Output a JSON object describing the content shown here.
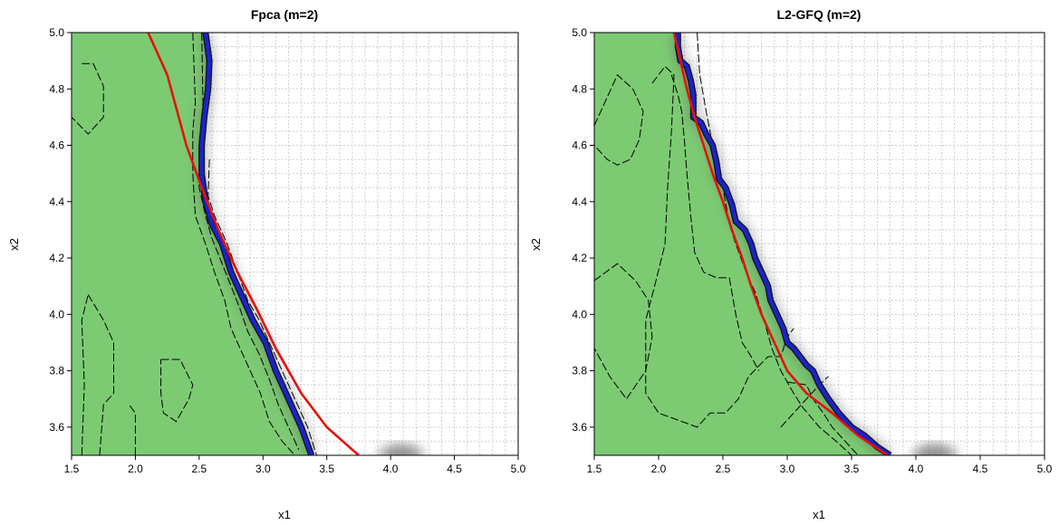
{
  "chart_data": [
    {
      "type": "area",
      "title": "Fpca (m=2)",
      "xlabel": "x1",
      "ylabel": "x2",
      "xlim": [
        1.5,
        5.0
      ],
      "ylim": [
        3.5,
        5.0
      ],
      "xticks": [
        "1.5",
        "2.0",
        "2.5",
        "3.0",
        "3.5",
        "4.0",
        "4.5",
        "5.0"
      ],
      "yticks": [
        "3.6",
        "3.8",
        "4.0",
        "4.2",
        "4.4",
        "4.6",
        "4.8",
        "5.0"
      ],
      "grid": true,
      "colors": {
        "region": "#7ccb73",
        "estimated_boundary": "#1a24c8",
        "true_boundary": "#e8100c",
        "contours": "#000000",
        "shading": "#707070"
      },
      "region_boundary": [
        [
          2.55,
          5.0
        ],
        [
          2.58,
          4.9
        ],
        [
          2.57,
          4.8
        ],
        [
          2.54,
          4.7
        ],
        [
          2.52,
          4.6
        ],
        [
          2.52,
          4.5
        ],
        [
          2.55,
          4.4
        ],
        [
          2.6,
          4.32
        ],
        [
          2.68,
          4.25
        ],
        [
          2.75,
          4.15
        ],
        [
          2.85,
          4.05
        ],
        [
          2.92,
          3.98
        ],
        [
          3.02,
          3.9
        ],
        [
          3.1,
          3.8
        ],
        [
          3.2,
          3.7
        ],
        [
          3.3,
          3.6
        ],
        [
          3.38,
          3.5
        ]
      ],
      "true_boundary": [
        [
          2.1,
          5.0
        ],
        [
          2.25,
          4.85
        ],
        [
          2.4,
          4.6
        ],
        [
          2.52,
          4.45
        ],
        [
          2.65,
          4.3
        ],
        [
          2.8,
          4.15
        ],
        [
          2.95,
          4.02
        ],
        [
          3.1,
          3.88
        ],
        [
          3.3,
          3.72
        ],
        [
          3.5,
          3.6
        ],
        [
          3.75,
          3.5
        ]
      ],
      "contours": [
        [
          [
            1.58,
            4.89
          ],
          [
            1.67,
            4.89
          ],
          [
            1.75,
            4.81
          ],
          [
            1.75,
            4.7
          ],
          [
            1.63,
            4.64
          ],
          [
            1.5,
            4.7
          ]
        ],
        [
          [
            1.63,
            4.07
          ],
          [
            1.75,
            3.98
          ],
          [
            1.83,
            3.9
          ],
          [
            1.83,
            3.72
          ],
          [
            1.75,
            3.68
          ],
          [
            1.72,
            3.5
          ]
        ],
        [
          [
            1.58,
            3.5
          ],
          [
            1.6,
            3.75
          ],
          [
            1.58,
            3.98
          ],
          [
            1.63,
            4.07
          ]
        ],
        [
          [
            2.2,
            3.84
          ],
          [
            2.35,
            3.84
          ],
          [
            2.45,
            3.75
          ],
          [
            2.42,
            3.7
          ],
          [
            2.32,
            3.62
          ],
          [
            2.22,
            3.65
          ],
          [
            2.2,
            3.72
          ],
          [
            2.2,
            3.84
          ]
        ],
        [
          [
            2.0,
            3.5
          ],
          [
            2.0,
            3.65
          ],
          [
            1.95,
            3.68
          ]
        ],
        [
          [
            2.45,
            5.0
          ],
          [
            2.47,
            4.75
          ],
          [
            2.45,
            4.65
          ],
          [
            2.45,
            4.5
          ],
          [
            2.47,
            4.35
          ],
          [
            2.55,
            4.25
          ],
          [
            2.62,
            4.15
          ],
          [
            2.7,
            4.05
          ],
          [
            2.75,
            3.95
          ],
          [
            2.82,
            3.88
          ],
          [
            2.88,
            3.82
          ],
          [
            2.98,
            3.72
          ],
          [
            3.05,
            3.62
          ],
          [
            3.15,
            3.55
          ],
          [
            3.25,
            3.5
          ]
        ],
        [
          [
            2.52,
            5.0
          ],
          [
            2.53,
            4.75
          ],
          [
            2.5,
            4.6
          ],
          [
            2.5,
            4.45
          ],
          [
            2.55,
            4.35
          ],
          [
            2.6,
            4.27
          ],
          [
            2.68,
            4.18
          ],
          [
            2.75,
            4.1
          ],
          [
            2.82,
            4.02
          ],
          [
            2.88,
            3.94
          ],
          [
            2.97,
            3.86
          ],
          [
            3.05,
            3.77
          ],
          [
            3.12,
            3.68
          ],
          [
            3.2,
            3.6
          ],
          [
            3.28,
            3.52
          ]
        ],
        [
          [
            2.58,
            4.55
          ],
          [
            2.57,
            4.42
          ],
          [
            2.62,
            4.35
          ],
          [
            2.72,
            4.25
          ],
          [
            2.8,
            4.15
          ],
          [
            2.88,
            4.05
          ],
          [
            2.97,
            3.98
          ],
          [
            3.05,
            3.9
          ],
          [
            3.15,
            3.8
          ],
          [
            3.25,
            3.7
          ],
          [
            3.35,
            3.6
          ],
          [
            3.42,
            3.5
          ]
        ]
      ],
      "shading": [
        [
          4.05,
          3.5,
          0.28
        ],
        [
          4.12,
          3.5,
          0.22
        ]
      ]
    },
    {
      "type": "area",
      "title": "L2-GFQ (m=2)",
      "xlabel": "x1",
      "ylabel": "x2",
      "xlim": [
        1.5,
        5.0
      ],
      "ylim": [
        3.5,
        5.0
      ],
      "xticks": [
        "1.5",
        "2.0",
        "2.5",
        "3.0",
        "3.5",
        "4.0",
        "4.5",
        "5.0"
      ],
      "yticks": [
        "3.6",
        "3.8",
        "4.0",
        "4.2",
        "4.4",
        "4.6",
        "4.8",
        "5.0"
      ],
      "grid": true,
      "colors": {
        "region": "#7ccb73",
        "estimated_boundary": "#1a24c8",
        "true_boundary": "#e8100c",
        "contours": "#000000",
        "shading": "#707070"
      },
      "region_boundary": [
        [
          2.15,
          5.0
        ],
        [
          2.15,
          4.95
        ],
        [
          2.17,
          4.9
        ],
        [
          2.22,
          4.88
        ],
        [
          2.25,
          4.83
        ],
        [
          2.27,
          4.78
        ],
        [
          2.27,
          4.7
        ],
        [
          2.33,
          4.68
        ],
        [
          2.37,
          4.64
        ],
        [
          2.42,
          4.6
        ],
        [
          2.45,
          4.54
        ],
        [
          2.47,
          4.48
        ],
        [
          2.52,
          4.45
        ],
        [
          2.57,
          4.39
        ],
        [
          2.6,
          4.33
        ],
        [
          2.67,
          4.3
        ],
        [
          2.72,
          4.25
        ],
        [
          2.75,
          4.2
        ],
        [
          2.8,
          4.15
        ],
        [
          2.85,
          4.1
        ],
        [
          2.87,
          4.05
        ],
        [
          2.92,
          4.0
        ],
        [
          2.97,
          3.95
        ],
        [
          3.0,
          3.9
        ],
        [
          3.05,
          3.88
        ],
        [
          3.1,
          3.85
        ],
        [
          3.15,
          3.82
        ],
        [
          3.2,
          3.8
        ],
        [
          3.25,
          3.75
        ],
        [
          3.32,
          3.7
        ],
        [
          3.4,
          3.65
        ],
        [
          3.5,
          3.6
        ],
        [
          3.6,
          3.57
        ],
        [
          3.7,
          3.53
        ],
        [
          3.8,
          3.5
        ]
      ],
      "true_boundary": [
        [
          2.12,
          5.0
        ],
        [
          2.17,
          4.9
        ],
        [
          2.22,
          4.8
        ],
        [
          2.28,
          4.7
        ],
        [
          2.35,
          4.6
        ],
        [
          2.42,
          4.5
        ],
        [
          2.5,
          4.4
        ],
        [
          2.57,
          4.3
        ],
        [
          2.65,
          4.2
        ],
        [
          2.72,
          4.1
        ],
        [
          2.8,
          4.0
        ],
        [
          2.9,
          3.9
        ],
        [
          3.0,
          3.8
        ],
        [
          3.15,
          3.72
        ],
        [
          3.35,
          3.65
        ],
        [
          3.55,
          3.57
        ],
        [
          3.78,
          3.5
        ]
      ],
      "contours": [
        [
          [
            1.5,
            4.67
          ],
          [
            1.68,
            4.85
          ],
          [
            1.8,
            4.8
          ],
          [
            1.88,
            4.72
          ],
          [
            1.85,
            4.62
          ],
          [
            1.78,
            4.55
          ],
          [
            1.68,
            4.53
          ],
          [
            1.6,
            4.55
          ],
          [
            1.5,
            4.6
          ]
        ],
        [
          [
            1.5,
            4.12
          ],
          [
            1.68,
            4.18
          ],
          [
            1.82,
            4.12
          ],
          [
            1.92,
            4.05
          ],
          [
            1.95,
            3.92
          ],
          [
            1.9,
            3.8
          ],
          [
            1.75,
            3.7
          ],
          [
            1.62,
            3.78
          ],
          [
            1.5,
            3.88
          ]
        ],
        [
          [
            1.95,
            4.82
          ],
          [
            2.05,
            4.88
          ],
          [
            2.12,
            4.85
          ],
          [
            2.1,
            4.65
          ],
          [
            2.07,
            4.45
          ],
          [
            2.05,
            4.25
          ],
          [
            1.98,
            4.12
          ],
          [
            1.9,
            3.98
          ],
          [
            1.9,
            3.8
          ],
          [
            1.9,
            3.72
          ],
          [
            2.0,
            3.65
          ],
          [
            2.18,
            3.62
          ],
          [
            2.3,
            3.6
          ],
          [
            2.4,
            3.65
          ],
          [
            2.52,
            3.65
          ],
          [
            2.62,
            3.7
          ],
          [
            2.7,
            3.78
          ],
          [
            2.85,
            3.85
          ],
          [
            2.95,
            3.85
          ],
          [
            3.0,
            3.92
          ],
          [
            3.05,
            3.95
          ]
        ],
        [
          [
            2.1,
            4.85
          ],
          [
            2.15,
            4.78
          ],
          [
            2.18,
            4.72
          ],
          [
            2.2,
            4.62
          ],
          [
            2.22,
            4.5
          ],
          [
            2.25,
            4.35
          ],
          [
            2.28,
            4.22
          ],
          [
            2.35,
            4.15
          ],
          [
            2.45,
            4.13
          ],
          [
            2.55,
            4.13
          ],
          [
            2.6,
            4.0
          ],
          [
            2.65,
            3.9
          ],
          [
            2.72,
            3.85
          ],
          [
            2.78,
            3.8
          ]
        ],
        [
          [
            2.3,
            5.0
          ],
          [
            2.32,
            4.85
          ],
          [
            2.37,
            4.72
          ],
          [
            2.42,
            4.6
          ],
          [
            2.5,
            4.45
          ],
          [
            2.55,
            4.32
          ],
          [
            2.6,
            4.25
          ],
          [
            2.68,
            4.15
          ],
          [
            2.75,
            4.08
          ],
          [
            2.82,
            3.98
          ],
          [
            2.88,
            3.88
          ],
          [
            2.95,
            3.8
          ],
          [
            3.05,
            3.72
          ],
          [
            3.12,
            3.67
          ],
          [
            3.25,
            3.6
          ],
          [
            3.38,
            3.55
          ],
          [
            3.5,
            3.5
          ]
        ],
        [
          [
            3.0,
            3.76
          ],
          [
            3.15,
            3.75
          ],
          [
            3.2,
            3.7
          ],
          [
            3.28,
            3.65
          ],
          [
            3.35,
            3.6
          ],
          [
            3.45,
            3.55
          ],
          [
            3.55,
            3.5
          ]
        ],
        [
          [
            2.95,
            3.6
          ],
          [
            3.05,
            3.65
          ],
          [
            3.15,
            3.7
          ],
          [
            3.25,
            3.75
          ],
          [
            3.32,
            3.78
          ]
        ]
      ],
      "shading": [
        [
          4.12,
          3.5,
          0.3
        ],
        [
          4.18,
          3.5,
          0.22
        ]
      ]
    }
  ]
}
